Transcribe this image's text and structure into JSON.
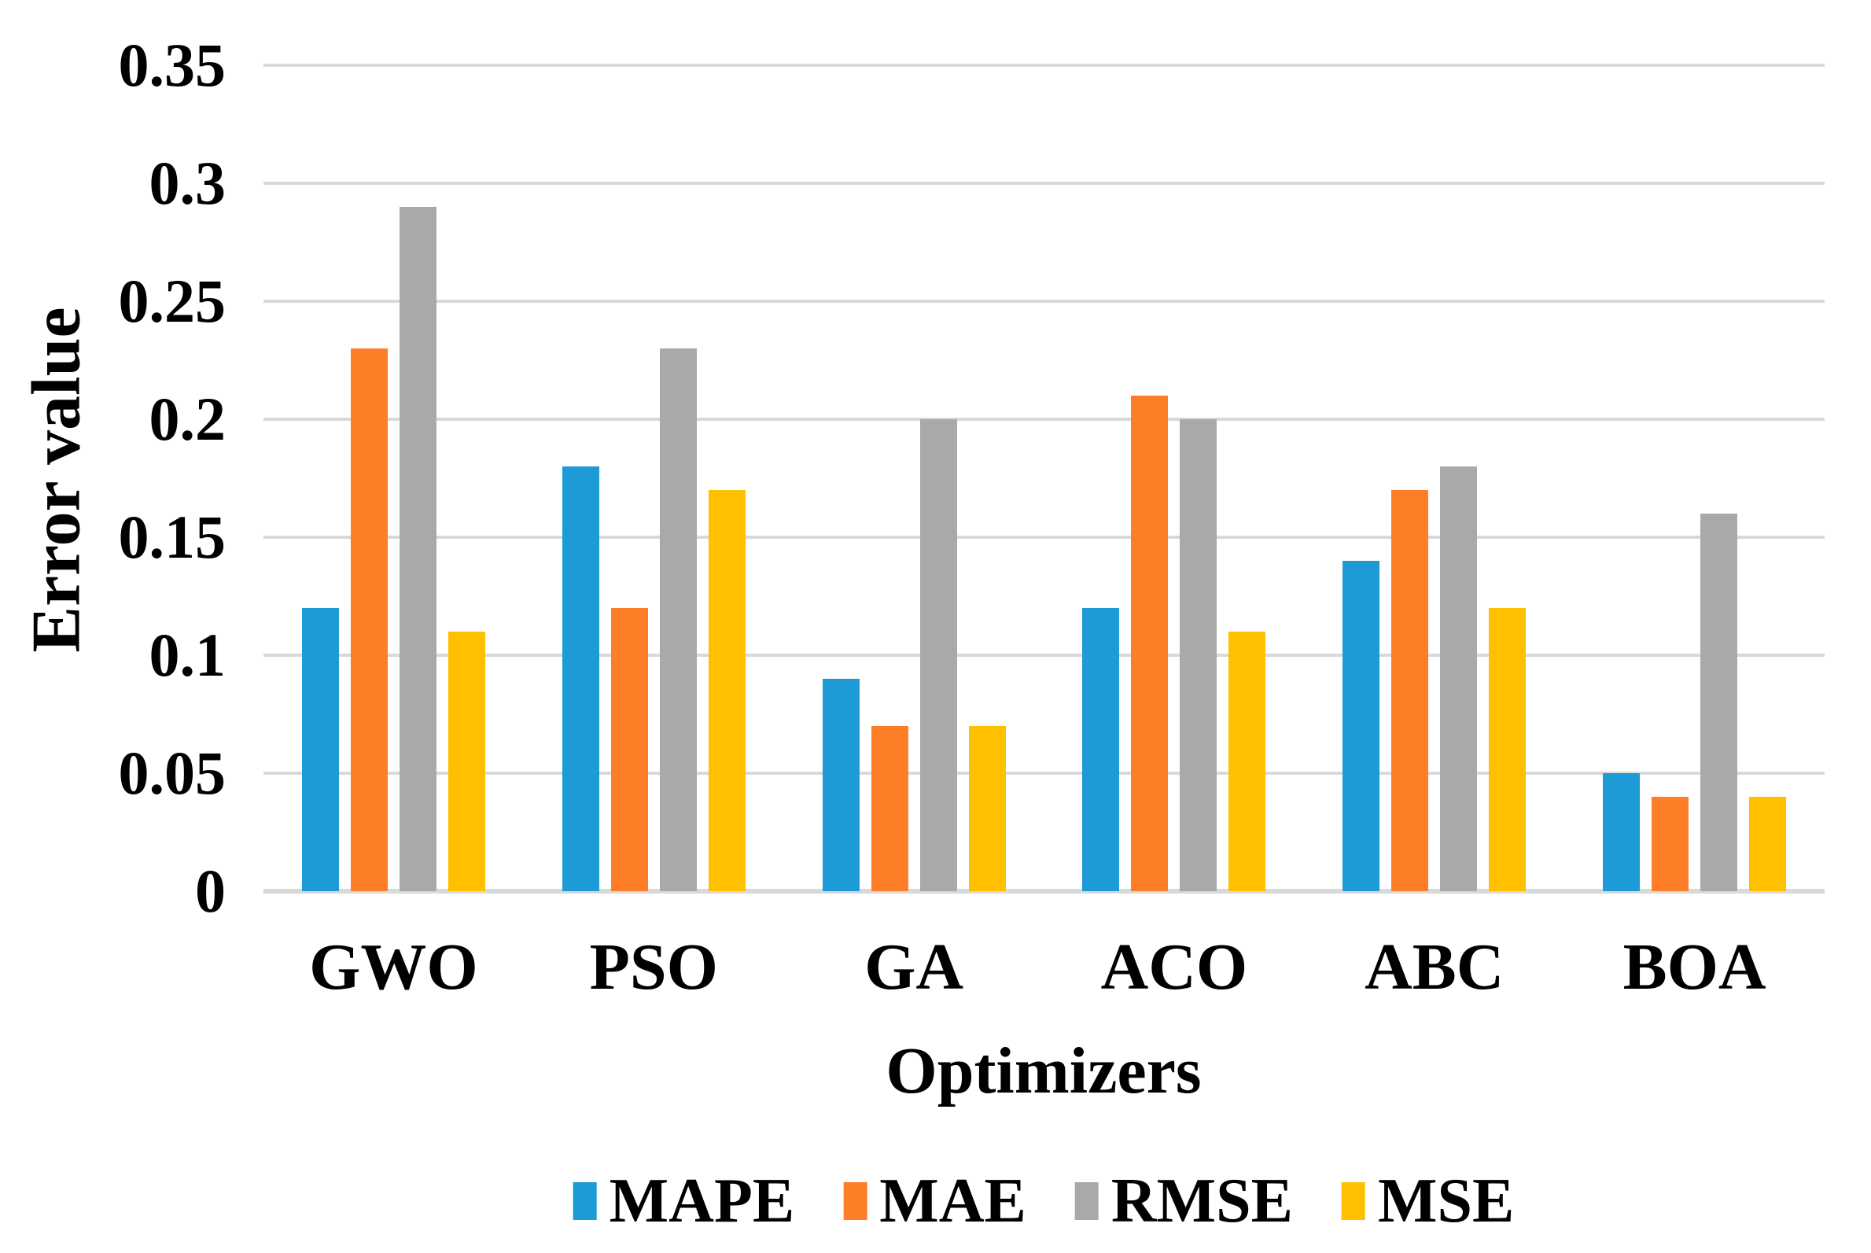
{
  "chart_data": {
    "type": "bar",
    "title": "",
    "xlabel": "Optimizers",
    "ylabel": "Error value",
    "categories": [
      "GWO",
      "PSO",
      "GA",
      "ACO",
      "ABC",
      "BOA"
    ],
    "series": [
      {
        "name": "MAPE",
        "color": "#1E9AD7",
        "values": [
          0.12,
          0.18,
          0.09,
          0.12,
          0.14,
          0.05
        ]
      },
      {
        "name": "MAE",
        "color": "#FD7E27",
        "values": [
          0.23,
          0.12,
          0.07,
          0.21,
          0.17,
          0.04
        ]
      },
      {
        "name": "RMSE",
        "color": "#A9A9A9",
        "values": [
          0.29,
          0.23,
          0.2,
          0.2,
          0.18,
          0.16
        ]
      },
      {
        "name": "MSE",
        "color": "#FFC000",
        "values": [
          0.11,
          0.17,
          0.07,
          0.11,
          0.12,
          0.04
        ]
      }
    ],
    "ylim": [
      0,
      0.35
    ],
    "yticks": {
      "values": [
        0,
        0.05,
        0.1,
        0.15,
        0.2,
        0.25,
        0.3,
        0.35
      ],
      "labels": [
        "0",
        "0.05",
        "0.1",
        "0.15",
        "0.2",
        "0.25",
        "0.3",
        "0.35"
      ]
    },
    "grid": "horizontal",
    "gridline_color": "#D9D9D9",
    "axis_line_color": "#D9D9D9",
    "legend_position": "bottom",
    "background_color": "#FFFFFF",
    "text_color": "#000000"
  }
}
